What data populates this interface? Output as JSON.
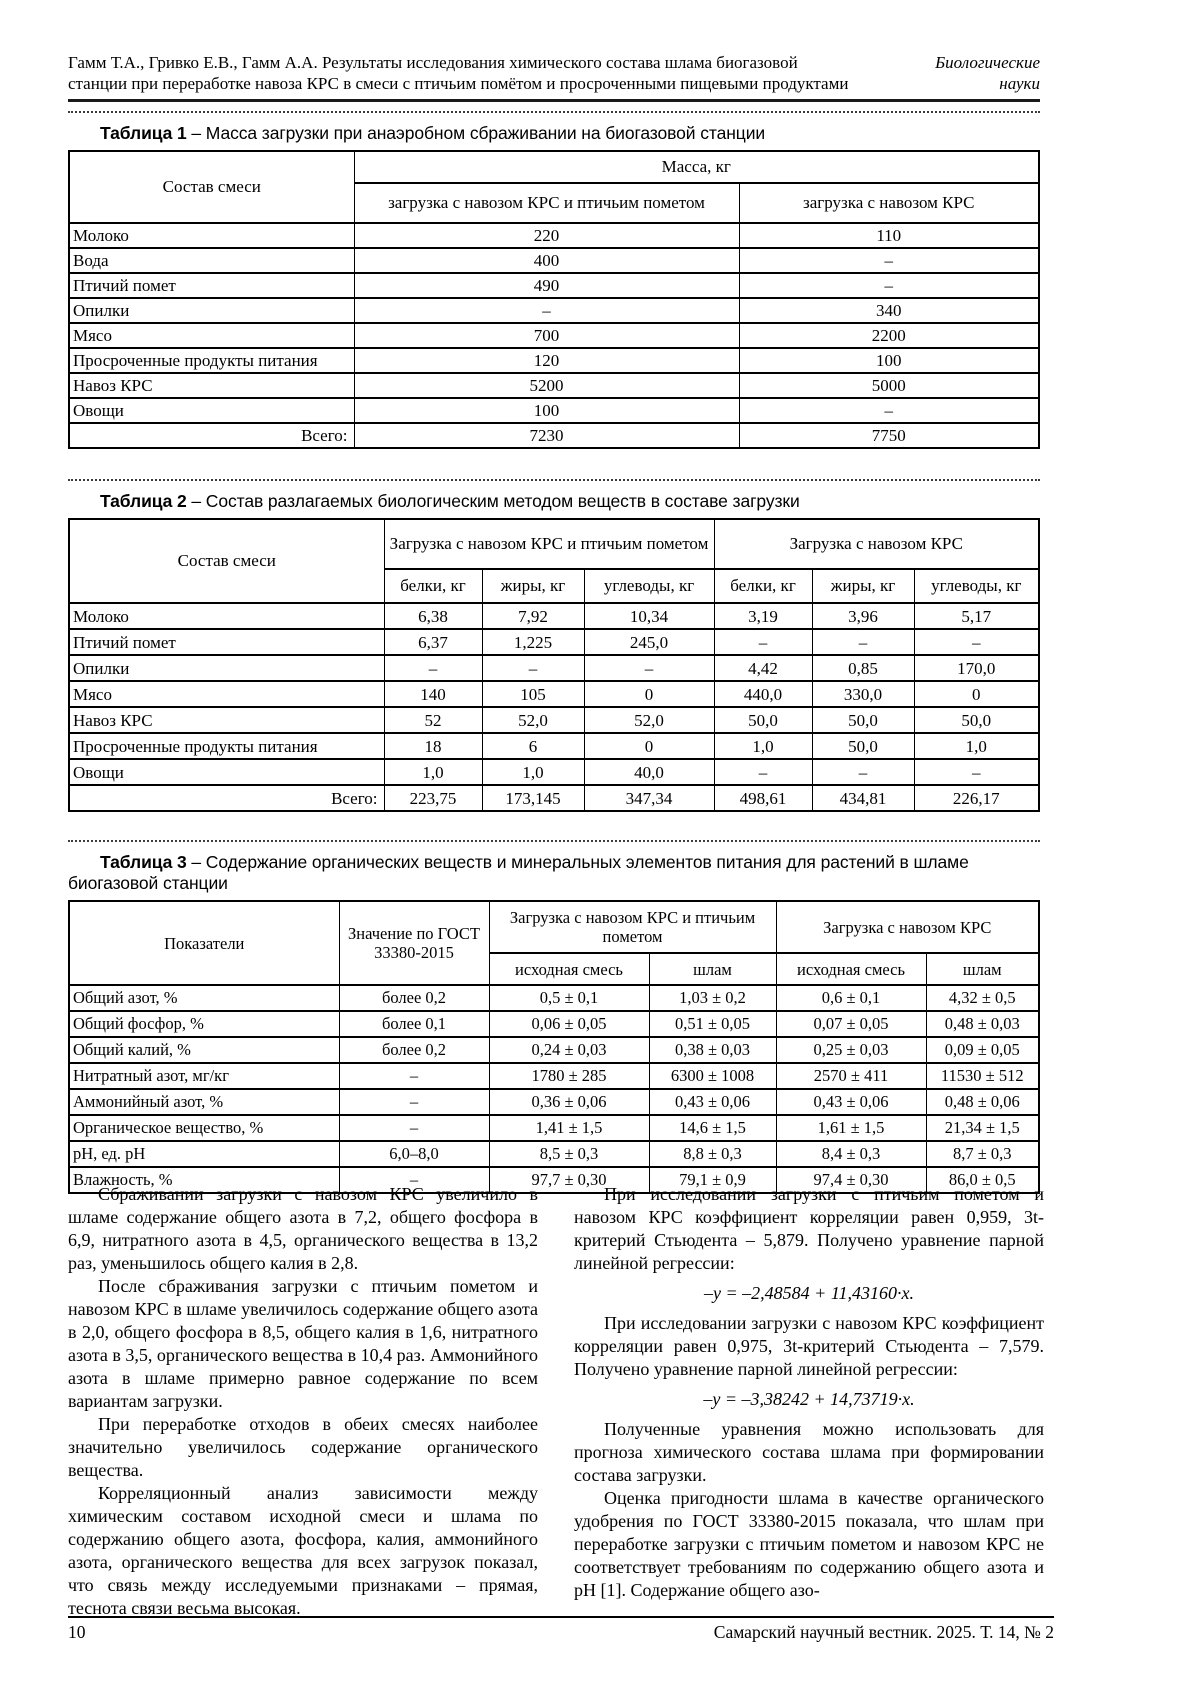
{
  "header": {
    "line1": "Гамм Т.А., Гривко Е.В., Гамм А.А. Результаты исследования химического состава шлама биогазовой",
    "line2": "станции при переработке навоза КРС в смеси с птичьим помётом и просроченными пищевыми продуктами",
    "section_line1": "Биологические",
    "section_line2": "науки"
  },
  "table1": {
    "caption_label": "Таблица 1",
    "caption_rest": " – Масса загрузки при анаэробном сбраживании на биогазовой станции",
    "col_header": "Состав смеси",
    "group_header": "Масса, кг",
    "sub_headers": [
      "загрузка с навозом КРС и птичьим пометом",
      "загрузка с навозом КРС"
    ],
    "rows": [
      [
        "Молоко",
        "220",
        "110"
      ],
      [
        "Вода",
        "400",
        "–"
      ],
      [
        "Птичий помет",
        "490",
        "–"
      ],
      [
        "Опилки",
        "–",
        "340"
      ],
      [
        "Мясо",
        "700",
        "2200"
      ],
      [
        "Просроченные продукты питания",
        "120",
        "100"
      ],
      [
        "Навоз КРС",
        "5200",
        "5000"
      ],
      [
        "Овощи",
        "100",
        "–"
      ],
      [
        "Всего:",
        "7230",
        "7750"
      ]
    ]
  },
  "table2": {
    "caption_label": "Таблица 2",
    "caption_rest": " – Состав разлагаемых биологическим методом веществ в составе загрузки",
    "col_header": "Состав смеси",
    "groups": [
      "Загрузка с навозом КРС и птичьим пометом",
      "Загрузка с навозом КРС"
    ],
    "sub_headers": [
      "белки, кг",
      "жиры, кг",
      "углеводы, кг",
      "белки, кг",
      "жиры, кг",
      "углеводы, кг"
    ],
    "rows": [
      [
        "Молоко",
        "6,38",
        "7,92",
        "10,34",
        "3,19",
        "3,96",
        "5,17"
      ],
      [
        "Птичий помет",
        "6,37",
        "1,225",
        "245,0",
        "–",
        "–",
        "–"
      ],
      [
        "Опилки",
        "–",
        "–",
        "–",
        "4,42",
        "0,85",
        "170,0"
      ],
      [
        "Мясо",
        "140",
        "105",
        "0",
        "440,0",
        "330,0",
        "0"
      ],
      [
        "Навоз КРС",
        "52",
        "52,0",
        "52,0",
        "50,0",
        "50,0",
        "50,0"
      ],
      [
        "Просроченные продукты питания",
        "18",
        "6",
        "0",
        "1,0",
        "50,0",
        "1,0"
      ],
      [
        "Овощи",
        "1,0",
        "1,0",
        "40,0",
        "–",
        "–",
        "–"
      ],
      [
        "Всего:",
        "223,75",
        "173,145",
        "347,34",
        "498,61",
        "434,81",
        "226,17"
      ]
    ]
  },
  "table3": {
    "caption_label": "Таблица 3",
    "caption_rest": " – Содержание органических веществ и минеральных элементов питания для растений в шламе",
    "caption_rest2": "биогазовой станции",
    "col_header": "Показатели",
    "gost_header": "Значение по ГОСТ 33380-2015",
    "groups": [
      "Загрузка с навозом КРС и птичьим пометом",
      "Загрузка с навозом КРС"
    ],
    "sub_headers": [
      "исходная смесь",
      "шлам",
      "исходная смесь",
      "шлам"
    ],
    "rows": [
      [
        "Общий азот, %",
        "более 0,2",
        "0,5 ± 0,1",
        "1,03 ± 0,2",
        "0,6 ± 0,1",
        "4,32 ± 0,5"
      ],
      [
        "Общий фосфор, %",
        "более 0,1",
        "0,06 ± 0,05",
        "0,51 ± 0,05",
        "0,07 ± 0,05",
        "0,48 ± 0,03"
      ],
      [
        "Общий калий, %",
        "более 0,2",
        "0,24 ± 0,03",
        "0,38 ± 0,03",
        "0,25 ± 0,03",
        "0,09 ± 0,05"
      ],
      [
        "Нитратный азот, мг/кг",
        "–",
        "1780 ± 285",
        "6300 ± 1008",
        "2570 ± 411",
        "11530 ± 512"
      ],
      [
        "Аммонийный азот, %",
        "–",
        "0,36 ± 0,06",
        "0,43 ± 0,06",
        "0,43 ± 0,06",
        "0,48 ± 0,06"
      ],
      [
        "Органическое вещество, %",
        "–",
        "1,41 ± 1,5",
        "14,6 ± 1,5",
        "1,61 ± 1,5",
        "21,34 ± 1,5"
      ],
      [
        "pH, ед. pH",
        "6,0–8,0",
        "8,5 ± 0,3",
        "8,8 ± 0,3",
        "8,4 ± 0,3",
        "8,7 ± 0,3"
      ],
      [
        "Влажность, %",
        "–",
        "97,7 ± 0,30",
        "79,1 ± 0,9",
        "97,4 ± 0,30",
        "86,0 ± 0,5"
      ]
    ]
  },
  "body": {
    "left": [
      "Сбраживании загрузки с навозом КРС увеличило в шламе содержание общего азота в 7,2, общего фосфора в 6,9, нитратного азота в 4,5, органического вещества в 13,2 раз, уменьшилось общего калия в 2,8.",
      "После сбраживания загрузки с птичьим пометом и навозом КРС в шламе увеличилось содержание общего азота в 2,0, общего фосфора в 8,5, общего калия в 1,6, нитратного азота в 3,5, органического вещества в 10,4 раз. Аммонийного азота в шламе примерно равное содержание по всем вариантам загрузки.",
      "При переработке отходов в обеих смесях наиболее значительно увеличилось содержание органического вещества.",
      "Корреляционный анализ зависимости между химическим составом исходной смеси и шлама по содержанию общего азота, фосфора, калия, аммонийного азота, органического вещества для всех загрузок показал, что связь между исследуемыми признаками – прямая, теснота связи весьма высокая."
    ],
    "right": [
      "При исследовании загрузки с птичьим пометом и навозом КРС коэффициент корреляции равен 0,959, 3t-критерий Стьюдента – 5,879. Получено уравнение парной линейной регрессии:",
      "–y = –2,48584 + 11,43160·x.",
      "При исследовании загрузки с навозом КРС коэффициент корреляции равен 0,975, 3t-критерий Стьюдента – 7,579. Получено уравнение парной линейной регрессии:",
      "–y = –3,38242 + 14,73719·x.",
      "Полученные уравнения можно использовать для прогноза химического состава шлама при формировании состава загрузки.",
      "Оценка пригодности шлама в качестве органического удобрения по ГОСТ 33380-2015 показала, что шлам при переработке загрузки с птичьим пометом и навозом КРС не соответствует требованиям по содержанию общего азота и pH [1]. Содержание общего азо-"
    ]
  },
  "footer": {
    "page_number": "10",
    "journal": "Самарский научный вестник. 2025. Т. 14, № 2"
  }
}
